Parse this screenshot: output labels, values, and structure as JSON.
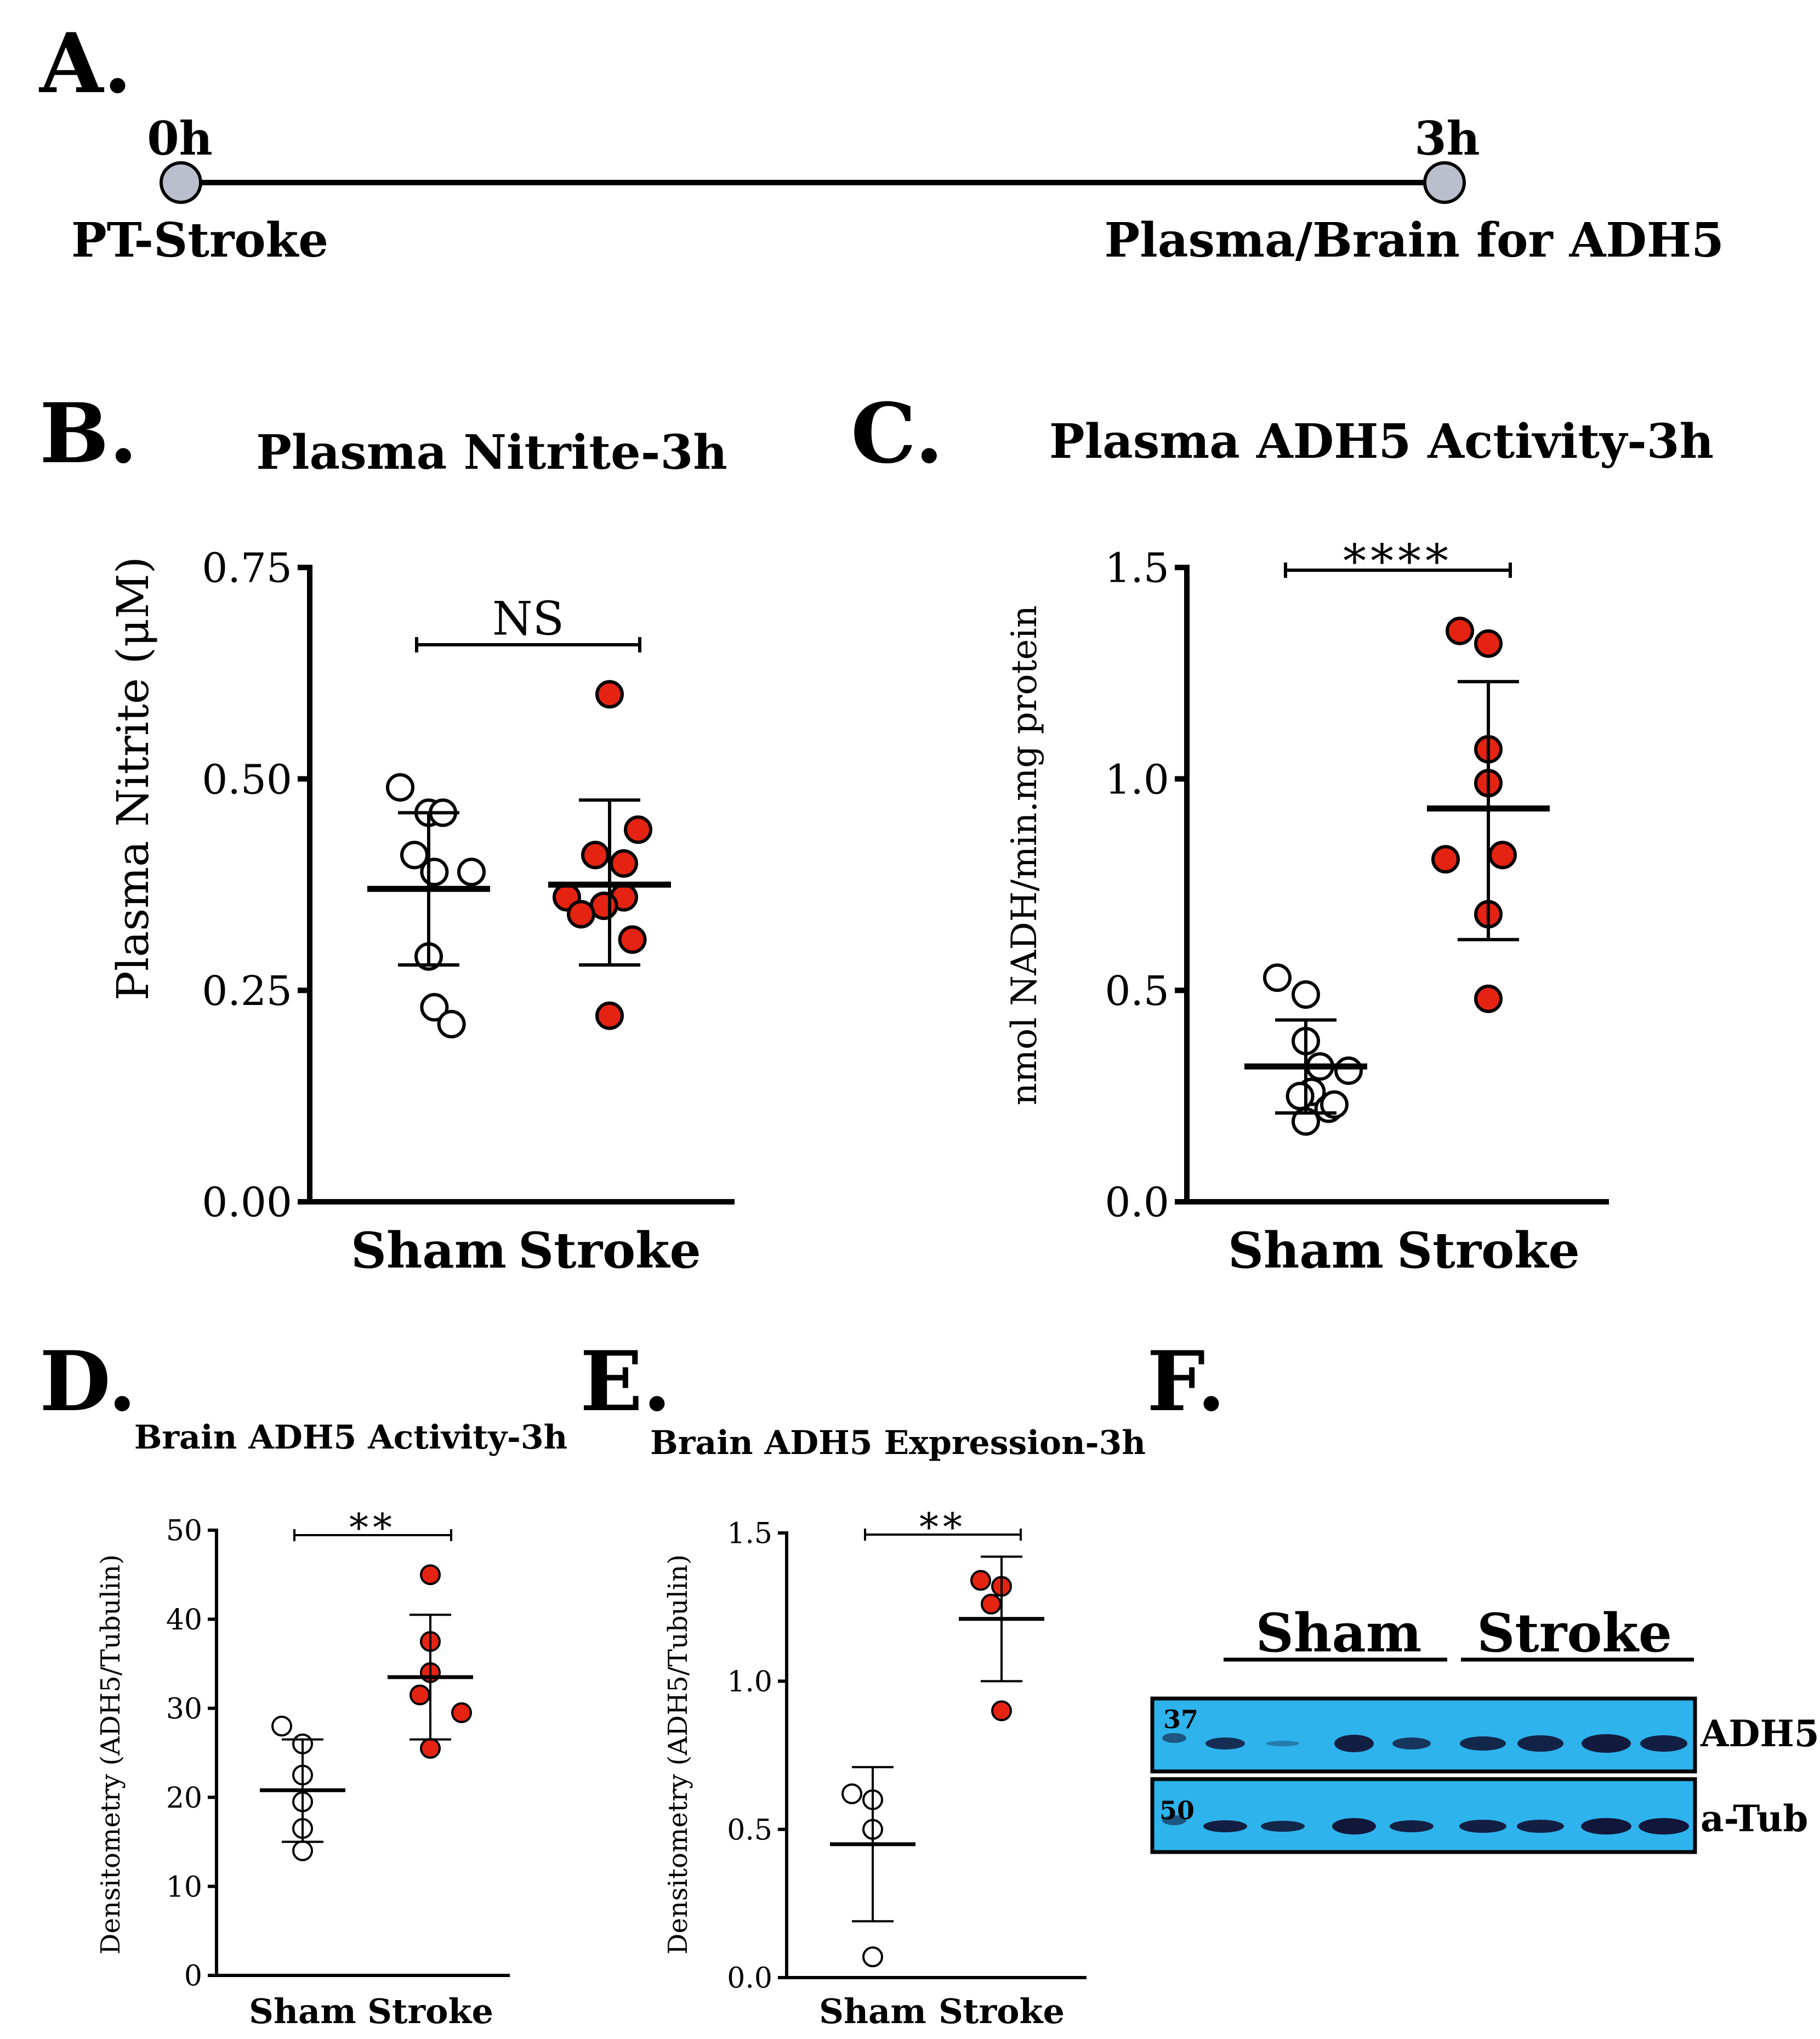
{
  "panels": {
    "A": {
      "letter": "A.",
      "start_time": "0h",
      "end_time": "3h",
      "start_label": "PT-Stroke",
      "end_label": "Plasma/Brain for ADH5"
    },
    "B": {
      "letter": "B."
    },
    "C": {
      "letter": "C."
    },
    "D": {
      "letter": "D."
    },
    "E": {
      "letter": "E."
    },
    "F": {
      "letter": "F.",
      "group_labels": [
        "Sham",
        "Stroke"
      ],
      "blot_labels": [
        "ADH5",
        "a-Tub"
      ],
      "marker_labels": [
        "37",
        "50"
      ],
      "band_color": "#11173a",
      "membrane_color": "#2eb3ec"
    }
  },
  "colors": {
    "sham_fill": "#ffffff",
    "stroke_fill": "#e42313",
    "axis": "#000000"
  },
  "chart_data": [
    {
      "panel": "B",
      "type": "scatter",
      "title": "Plasma Nitrite-3h",
      "ylabel": "Plasma Nitrite (μM)",
      "ylim": [
        0,
        0.75
      ],
      "yticks": [
        0,
        0.25,
        0.5,
        0.75
      ],
      "ytick_labels": [
        "0.00",
        "0.25",
        "0.50",
        "0.75"
      ],
      "categories": [
        "Sham",
        "Stroke"
      ],
      "significance": "NS",
      "series": [
        {
          "name": "Sham",
          "mean": 0.37,
          "sd_low": 0.28,
          "sd_high": 0.46,
          "points": [
            0.49,
            0.46,
            0.46,
            0.41,
            0.39,
            0.39,
            0.29,
            0.23,
            0.21
          ]
        },
        {
          "name": "Stroke",
          "mean": 0.375,
          "sd_low": 0.28,
          "sd_high": 0.475,
          "points": [
            0.6,
            0.44,
            0.41,
            0.4,
            0.36,
            0.36,
            0.35,
            0.34,
            0.31,
            0.22
          ]
        }
      ]
    },
    {
      "panel": "C",
      "type": "scatter",
      "title": "Plasma ADH5 Activity-3h",
      "ylabel": "nmol NADH/min.mg protein",
      "ylim": [
        0,
        1.5
      ],
      "yticks": [
        0,
        0.5,
        1.0,
        1.5
      ],
      "ytick_labels": [
        "0.0",
        "0.5",
        "1.0",
        "1.5"
      ],
      "categories": [
        "Sham",
        "Stroke"
      ],
      "significance": "****",
      "series": [
        {
          "name": "Sham",
          "mean": 0.32,
          "sd_low": 0.21,
          "sd_high": 0.43,
          "points": [
            0.53,
            0.49,
            0.38,
            0.32,
            0.31,
            0.26,
            0.25,
            0.22,
            0.23,
            0.19
          ]
        },
        {
          "name": "Stroke",
          "mean": 0.93,
          "sd_low": 0.62,
          "sd_high": 1.23,
          "points": [
            1.35,
            1.32,
            1.07,
            0.99,
            0.82,
            0.81,
            0.68,
            0.48
          ]
        }
      ]
    },
    {
      "panel": "D",
      "type": "scatter",
      "title": "Brain ADH5 Activity-3h",
      "ylabel": "Densitometry (ADH5/Tubulin)",
      "ylim": [
        0,
        50
      ],
      "yticks": [
        0,
        10,
        20,
        30,
        40,
        50
      ],
      "ytick_labels": [
        "0",
        "10",
        "20",
        "30",
        "40",
        "50"
      ],
      "categories": [
        "Sham",
        "Stroke"
      ],
      "significance": "**",
      "series": [
        {
          "name": "Sham",
          "mean": 20.8,
          "sd_low": 15.0,
          "sd_high": 26.5,
          "points": [
            28,
            26,
            22.5,
            19.5,
            16.5,
            14
          ]
        },
        {
          "name": "Stroke",
          "mean": 33.5,
          "sd_low": 26.5,
          "sd_high": 40.5,
          "points": [
            45,
            37.5,
            34,
            31.5,
            29.5,
            25.5
          ]
        }
      ]
    },
    {
      "panel": "E",
      "type": "scatter",
      "title": "Brain ADH5 Expression-3h",
      "ylabel": "Densitometry (ADH5/Tubulin)",
      "ylim": [
        0,
        1.5
      ],
      "yticks": [
        0,
        0.5,
        1.0,
        1.5
      ],
      "ytick_labels": [
        "0.0",
        "0.5",
        "1.0",
        "1.5"
      ],
      "categories": [
        "Sham",
        "Stroke"
      ],
      "significance": "**",
      "series": [
        {
          "name": "Sham",
          "mean": 0.45,
          "sd_low": 0.19,
          "sd_high": 0.71,
          "points": [
            0.62,
            0.6,
            0.5,
            0.07
          ]
        },
        {
          "name": "Stroke",
          "mean": 1.21,
          "sd_low": 1.0,
          "sd_high": 1.42,
          "points": [
            1.34,
            1.32,
            1.26,
            0.9
          ]
        }
      ]
    }
  ]
}
